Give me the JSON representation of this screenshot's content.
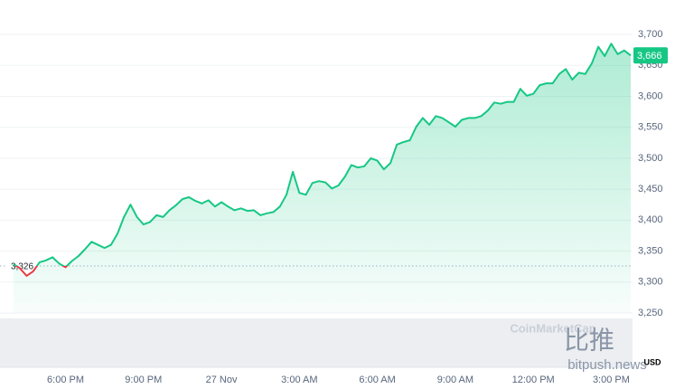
{
  "chart_data": {
    "type": "line",
    "categories": [
      null,
      null,
      null,
      null,
      null,
      null,
      null,
      null,
      "6:00 PM",
      null,
      null,
      null,
      null,
      null,
      null,
      null,
      null,
      null,
      null,
      null,
      "9:00 PM",
      null,
      null,
      null,
      null,
      null,
      null,
      null,
      null,
      null,
      null,
      null,
      "27 Nov",
      null,
      null,
      null,
      null,
      null,
      null,
      null,
      null,
      null,
      null,
      null,
      "3:00 AM",
      null,
      null,
      null,
      null,
      null,
      null,
      null,
      null,
      null,
      null,
      null,
      "6:00 AM",
      null,
      null,
      null,
      null,
      null,
      null,
      null,
      null,
      null,
      null,
      null,
      "9:00 AM",
      null,
      null,
      null,
      null,
      null,
      null,
      null,
      null,
      null,
      null,
      null,
      "12:00 PM",
      null,
      null,
      null,
      null,
      null,
      null,
      null,
      null,
      null,
      null,
      null,
      "3:00 PM",
      null,
      null,
      null
    ],
    "values": [
      3329,
      3322,
      3310,
      3317,
      3332,
      3335,
      3340,
      3330,
      3324,
      3334,
      3342,
      3353,
      3365,
      3360,
      3355,
      3360,
      3378,
      3405,
      3425,
      3405,
      3393,
      3397,
      3408,
      3405,
      3416,
      3424,
      3434,
      3437,
      3431,
      3427,
      3432,
      3422,
      3429,
      3422,
      3416,
      3419,
      3415,
      3416,
      3408,
      3411,
      3413,
      3422,
      3441,
      3478,
      3444,
      3441,
      3460,
      3463,
      3461,
      3451,
      3456,
      3470,
      3489,
      3485,
      3487,
      3500,
      3496,
      3482,
      3492,
      3522,
      3526,
      3529,
      3551,
      3565,
      3554,
      3568,
      3565,
      3558,
      3551,
      3562,
      3565,
      3565,
      3568,
      3577,
      3590,
      3588,
      3591,
      3591,
      3612,
      3601,
      3604,
      3618,
      3621,
      3621,
      3636,
      3644,
      3627,
      3638,
      3636,
      3653,
      3680,
      3665,
      3685,
      3668,
      3674,
      3666
    ],
    "up_color": "#16c784",
    "down_color": "#ea3943",
    "ylim": [
      3250,
      3700
    ],
    "yticks": [
      {
        "value": 3250,
        "label": "3,250"
      },
      {
        "value": 3300,
        "label": "3,300"
      },
      {
        "value": 3350,
        "label": "3,350"
      },
      {
        "value": 3400,
        "label": "3,400"
      },
      {
        "value": 3450,
        "label": "3,450"
      },
      {
        "value": 3500,
        "label": "3,500"
      },
      {
        "value": 3550,
        "label": "3,550"
      },
      {
        "value": 3600,
        "label": "3,600"
      },
      {
        "value": 3650,
        "label": "3,650"
      },
      {
        "value": 3700,
        "label": "3,700"
      }
    ],
    "baseline": {
      "value": 3326,
      "label": "3,326"
    },
    "current_price": {
      "value": 3666,
      "label": "3,666"
    },
    "currency": "USD",
    "grid": true,
    "watermarks": [
      "CoinMarketCap",
      "比推",
      "bitpush.news"
    ]
  }
}
